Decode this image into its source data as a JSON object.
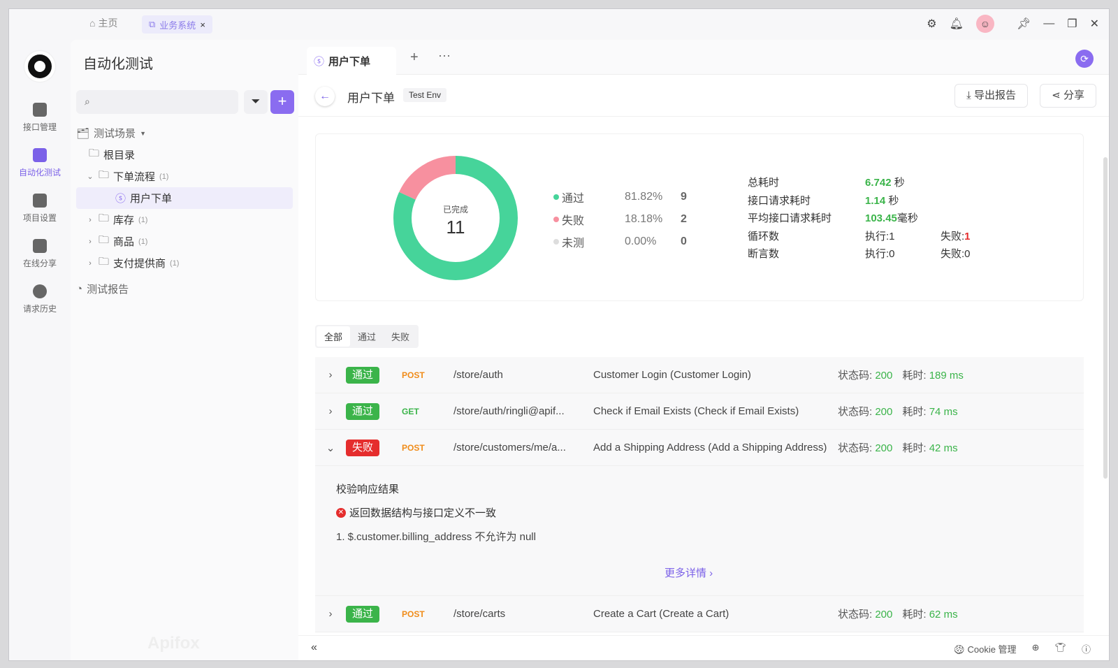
{
  "topbar": {
    "home": "主页",
    "project_tab": "业务系统",
    "close": "×"
  },
  "rail": [
    {
      "label": "接口管理"
    },
    {
      "label": "自动化测试"
    },
    {
      "label": "项目设置"
    },
    {
      "label": "在线分享"
    },
    {
      "label": "请求历史"
    }
  ],
  "sidebar": {
    "title": "自动化测试",
    "search_placeholder": "",
    "tree": [
      {
        "label": "测试场景",
        "count": ""
      },
      {
        "label": "根目录",
        "count": ""
      },
      {
        "label": "下单流程",
        "count": "(1)"
      },
      {
        "label": "用户下单",
        "count": ""
      },
      {
        "label": "库存",
        "count": "(1)"
      },
      {
        "label": "商品",
        "count": "(1)"
      },
      {
        "label": "支付提供商",
        "count": "(1)"
      }
    ],
    "reports": "测试报告",
    "watermark": "Apifox"
  },
  "main": {
    "tab": "用户下单",
    "title": "用户下单",
    "env": "Test Env",
    "export": "导出报告",
    "share": "分享"
  },
  "summary": {
    "center_label": "已完成",
    "center_value": "11",
    "legend": [
      {
        "name": "通过",
        "pct": "81.82%",
        "count": "9",
        "color": "#46d49a"
      },
      {
        "name": "失败",
        "pct": "18.18%",
        "count": "2",
        "color": "#f7909f"
      },
      {
        "name": "未测",
        "pct": "0.00%",
        "count": "0",
        "color": "#dddddd"
      }
    ],
    "stats": {
      "total_label": "总耗时",
      "total": "6.742",
      "total_unit": " 秒",
      "req_label": "接口请求耗时",
      "req": "1.14",
      "req_unit": " 秒",
      "avg_label": "平均接口请求耗时",
      "avg": "103.45",
      "avg_unit": "毫秒",
      "loop_label": "循环数",
      "loop_exec": "执行:1",
      "loop_fail_label": "失败:",
      "loop_fail": "1",
      "assert_label": "断言数",
      "assert_exec": "执行:0",
      "assert_fail": "失败:0"
    }
  },
  "filters": [
    "全部",
    "通过",
    "失败"
  ],
  "rows": [
    {
      "status": "通过",
      "method": "POST",
      "path": "/store/auth",
      "name": "Customer Login (Customer Login)",
      "code": "200",
      "time": "189 ms"
    },
    {
      "status": "通过",
      "method": "GET",
      "path": "/store/auth/ringli@apif...",
      "name": "Check if Email Exists (Check if Email Exists)",
      "code": "200",
      "time": "74 ms"
    },
    {
      "status": "失败",
      "method": "POST",
      "path": "/store/customers/me/a...",
      "name": "Add a Shipping Address (Add a Shipping Address)",
      "code": "200",
      "time": "42 ms"
    },
    {
      "status": "通过",
      "method": "POST",
      "path": "/store/carts",
      "name": "Create a Cart (Create a Cart)",
      "code": "200",
      "time": "62 ms"
    }
  ],
  "row_labels": {
    "code": "状态码: ",
    "time": "耗时: "
  },
  "detail": {
    "title": "校验响应结果",
    "error": "返回数据结构与接口定义不一致",
    "item": "1. $.customer.billing_address 不允许为 null",
    "more": "更多详情 ›"
  },
  "footer": {
    "cookie": "Cookie 管理"
  },
  "colors": {
    "accent": "#8a6cf0",
    "pass": "#3bb44a",
    "fail": "#e52d2d",
    "post": "#f08c1a",
    "get": "#3bb44a"
  }
}
